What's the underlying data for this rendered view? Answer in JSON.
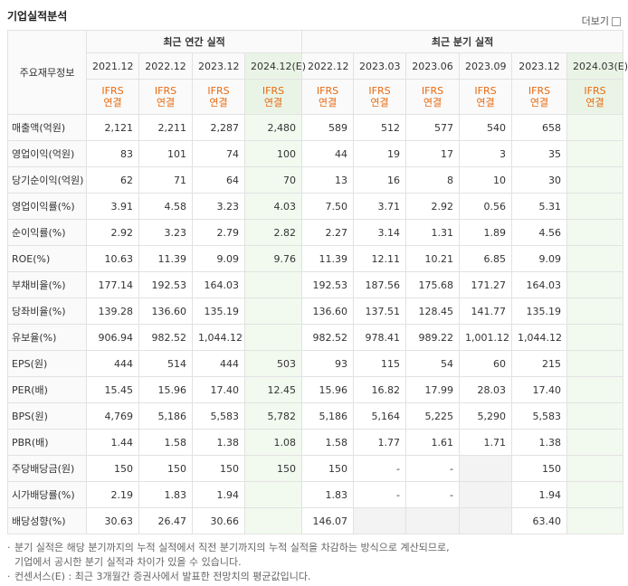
{
  "header": {
    "title": "기업실적분석",
    "more": "더보기"
  },
  "table": {
    "corner": "주요재무정보",
    "groups": [
      "최근 연간 실적",
      "최근 분기 실적"
    ],
    "columns": [
      {
        "period": "2021.12",
        "basis": "IFRS",
        "scope": "연결"
      },
      {
        "period": "2022.12",
        "basis": "IFRS",
        "scope": "연결"
      },
      {
        "period": "2023.12",
        "basis": "IFRS",
        "scope": "연결"
      },
      {
        "period": "2024.12(E)",
        "basis": "IFRS",
        "scope": "연결"
      },
      {
        "period": "2022.12",
        "basis": "IFRS",
        "scope": "연결"
      },
      {
        "period": "2023.03",
        "basis": "IFRS",
        "scope": "연결"
      },
      {
        "period": "2023.06",
        "basis": "IFRS",
        "scope": "연결"
      },
      {
        "period": "2023.09",
        "basis": "IFRS",
        "scope": "연결"
      },
      {
        "period": "2023.12",
        "basis": "IFRS",
        "scope": "연결"
      },
      {
        "period": "2024.03(E)",
        "basis": "IFRS",
        "scope": "연결"
      }
    ],
    "rows": [
      {
        "label": "매출액(억원)",
        "values": [
          "2,121",
          "2,211",
          "2,287",
          "2,480",
          "589",
          "512",
          "577",
          "540",
          "658",
          null
        ]
      },
      {
        "label": "영업이익(억원)",
        "values": [
          "83",
          "101",
          "74",
          "100",
          "44",
          "19",
          "17",
          "3",
          "35",
          null
        ]
      },
      {
        "label": "당기순이익(억원)",
        "values": [
          "62",
          "71",
          "64",
          "70",
          "13",
          "16",
          "8",
          "10",
          "30",
          null
        ]
      },
      {
        "label": "영업이익률(%)",
        "values": [
          "3.91",
          "4.58",
          "3.23",
          "4.03",
          "7.50",
          "3.71",
          "2.92",
          "0.56",
          "5.31",
          null
        ]
      },
      {
        "label": "순이익률(%)",
        "values": [
          "2.92",
          "3.23",
          "2.79",
          "2.82",
          "2.27",
          "3.14",
          "1.31",
          "1.89",
          "4.56",
          null
        ]
      },
      {
        "label": "ROE(%)",
        "values": [
          "10.63",
          "11.39",
          "9.09",
          "9.76",
          "11.39",
          "12.11",
          "10.21",
          "6.85",
          "9.09",
          null
        ]
      },
      {
        "label": "부채비율(%)",
        "values": [
          "177.14",
          "192.53",
          "164.03",
          null,
          "192.53",
          "187.56",
          "175.68",
          "171.27",
          "164.03",
          null
        ]
      },
      {
        "label": "당좌비율(%)",
        "values": [
          "139.28",
          "136.60",
          "135.19",
          null,
          "136.60",
          "137.51",
          "128.45",
          "141.77",
          "135.19",
          null
        ]
      },
      {
        "label": "유보율(%)",
        "values": [
          "906.94",
          "982.52",
          "1,044.12",
          null,
          "982.52",
          "978.41",
          "989.22",
          "1,001.12",
          "1,044.12",
          null
        ]
      },
      {
        "label": "EPS(원)",
        "values": [
          "444",
          "514",
          "444",
          "503",
          "93",
          "115",
          "54",
          "60",
          "215",
          null
        ]
      },
      {
        "label": "PER(배)",
        "values": [
          "15.45",
          "15.96",
          "17.40",
          "12.45",
          "15.96",
          "16.82",
          "17.99",
          "28.03",
          "17.40",
          null
        ]
      },
      {
        "label": "BPS(원)",
        "values": [
          "4,769",
          "5,186",
          "5,583",
          "5,782",
          "5,186",
          "5,164",
          "5,225",
          "5,290",
          "5,583",
          null
        ]
      },
      {
        "label": "PBR(배)",
        "values": [
          "1.44",
          "1.58",
          "1.38",
          "1.08",
          "1.58",
          "1.77",
          "1.61",
          "1.71",
          "1.38",
          null
        ]
      },
      {
        "label": "주당배당금(원)",
        "values": [
          "150",
          "150",
          "150",
          "150",
          "150",
          "-",
          "-",
          null,
          "150",
          null
        ]
      },
      {
        "label": "시가배당률(%)",
        "values": [
          "2.19",
          "1.83",
          "1.94",
          null,
          "1.83",
          "-",
          "-",
          null,
          "1.94",
          null
        ]
      },
      {
        "label": "배당성향(%)",
        "values": [
          "30.63",
          "26.47",
          "30.66",
          null,
          "146.07",
          null,
          null,
          null,
          "63.40",
          null
        ]
      }
    ]
  },
  "notes": [
    "분기 실적은 해당 분기까지의 누적 실적에서 직전 분기까지의 누적 실적을 차감하는 방식으로 계산되므로,",
    "기업에서 공시한 분기 실적과 차이가 있을 수 있습니다.",
    "컨센서스(E) : 최근 3개월간 증권사에서 발표한 전망치의 평균값입니다."
  ]
}
